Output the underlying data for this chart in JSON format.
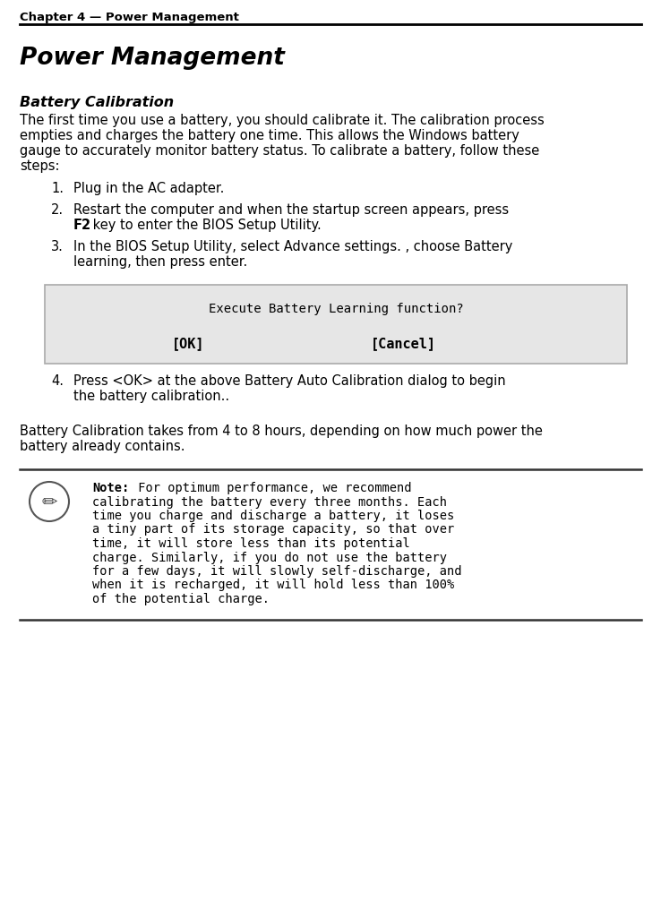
{
  "header_text": "Chapter 4 — Power Management",
  "title": "Power Management",
  "subtitle": "Battery Calibration",
  "intro_lines": [
    "The first time you use a battery, you should calibrate it. The calibration process",
    "empties and charges the battery one time. This allows the Windows battery",
    "gauge to accurately monitor battery status. To calibrate a battery, follow these",
    "steps:"
  ],
  "step1": "Plug in the AC adapter.",
  "step2a": "Restart the computer and when the startup screen appears, press",
  "step2b_bold": "F2",
  "step2b_rest": " key to enter the BIOS Setup Utility.",
  "step3a": "In the BIOS Setup Utility, select Advance settings. , choose Battery",
  "step3b": "learning, then press enter.",
  "dialog_line1": "Execute Battery Learning function?",
  "dialog_ok": "[OK]",
  "dialog_cancel": "[Cancel]",
  "step4a": "Press <OK> at the above Battery Auto Calibration dialog to begin",
  "step4b": "the battery calibration..",
  "summary1": "Battery Calibration takes from 4 to 8 hours, depending on how much power the",
  "summary2": "battery already contains.",
  "note_bold": "Note:",
  "note_line0_rest": " For optimum performance, we recommend",
  "note_lines": [
    "calibrating the battery every three months. Each",
    "time you charge and discharge a battery, it loses",
    "a tiny part of its storage capacity, so that over",
    "time, it will store less than its potential",
    "charge. Similarly, if you do not use the battery",
    "for a few days, it will slowly self-discharge, and",
    "when it is recharged, it will hold less than 100%",
    "of the potential charge."
  ],
  "bg_color": "#ffffff",
  "dialog_bg": "#e6e6e6",
  "header_line_color": "#000000",
  "note_line_color": "#333333"
}
